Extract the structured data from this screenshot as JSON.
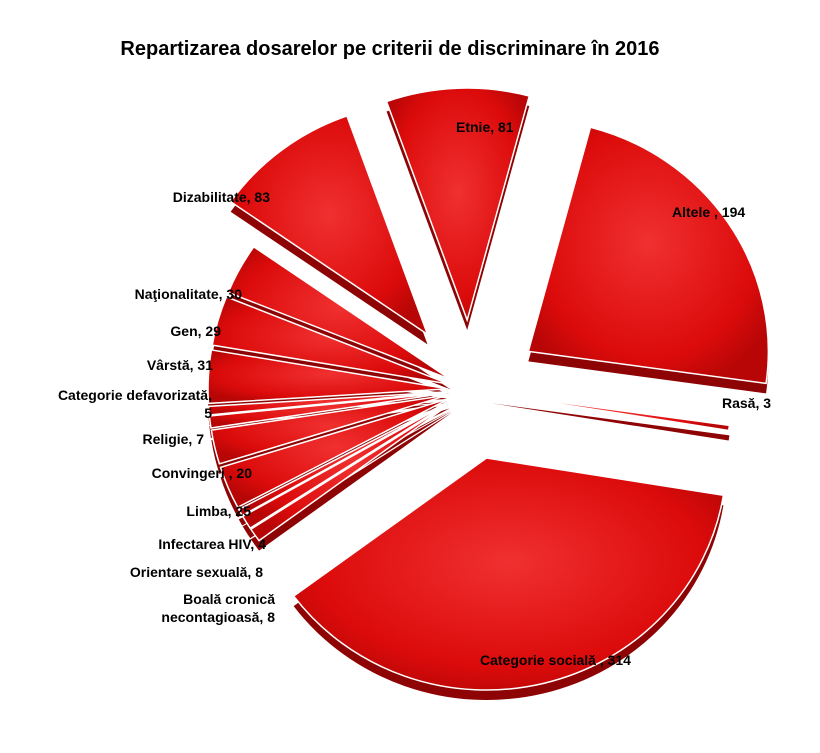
{
  "chart_data": {
    "type": "pie",
    "title": "Repartizarea dosarelor pe criterii de discriminare în 2016",
    "slices": [
      {
        "name": "Altele",
        "label": "Altele , 194",
        "value": 194
      },
      {
        "name": "Rasă",
        "label": "Rasă, 3",
        "value": 3
      },
      {
        "name": "Categorie socială",
        "label": "Categorie socială , 314",
        "value": 314
      },
      {
        "name": "Boală cronică necontagioasă",
        "label": "Boală cronică\nnecontagioasă, 8",
        "value": 8
      },
      {
        "name": "Orientare sexuală",
        "label": "Orientare sexuală, 8",
        "value": 8
      },
      {
        "name": "Infectarea HIV",
        "label": "Infectarea HIV, 4",
        "value": 4
      },
      {
        "name": "Limba",
        "label": "Limba, 25",
        "value": 25
      },
      {
        "name": "Convingeri",
        "label": "Convingeri , 20",
        "value": 20
      },
      {
        "name": "Religie",
        "label": "Religie, 7",
        "value": 7
      },
      {
        "name": "Categorie defavorizată",
        "label": "Categorie defavorizată,\n5",
        "value": 5
      },
      {
        "name": "Vârstă",
        "label": "Vârstă, 31",
        "value": 31
      },
      {
        "name": "Gen",
        "label": "Gen, 29",
        "value": 29
      },
      {
        "name": "Naţionalitate",
        "label": "Naţionalitate, 30",
        "value": 30
      },
      {
        "name": "Dizabilitate",
        "label": "Dizabilitate, 83",
        "value": 83
      },
      {
        "name": "Etnie",
        "label": "Etnie, 81",
        "value": 81
      }
    ],
    "colors": {
      "slice": "#dd0a0a",
      "slice_dark": "#8e0303",
      "slice_light": "#ef2a2a",
      "edge": "#ffffff"
    },
    "legend": "none"
  }
}
